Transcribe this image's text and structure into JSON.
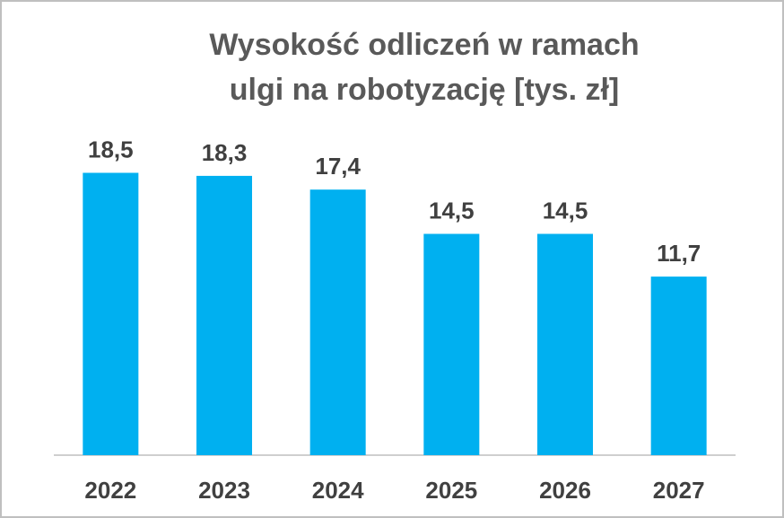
{
  "chart_data": {
    "type": "bar",
    "title": [
      "Wysokość odliczeń w ramach",
      "ulgi na robotyzację [tys. zł]"
    ],
    "categories": [
      "2022",
      "2023",
      "2024",
      "2025",
      "2026",
      "2027"
    ],
    "values": [
      18.5,
      18.3,
      17.4,
      14.5,
      14.5,
      11.7
    ],
    "value_labels": [
      "18,5",
      "18,3",
      "17,4",
      "14,5",
      "14,5",
      "11,7"
    ],
    "color": "#00b0f0"
  }
}
